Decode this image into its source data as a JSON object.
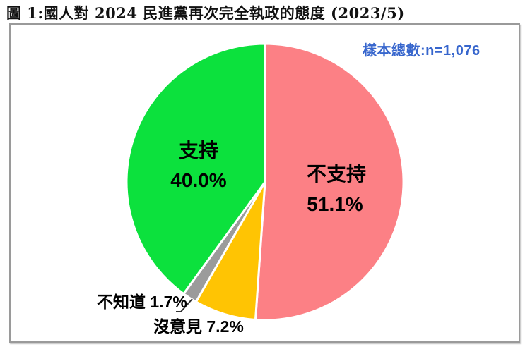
{
  "figure": {
    "title": "圖 1:國人對 2024 民進黨再次完全執政的態度 (2023/5)",
    "sample_note": "樣本總數:n=1,076",
    "sample_note_color": "#3766CD"
  },
  "chart_data": {
    "type": "pie",
    "title": "國人對 2024 民進黨再次完全執政的態度 (2023/5)",
    "sample_size": "n=1,076",
    "direction": "clockwise",
    "start_angle": "top (12 o'clock)",
    "legend": "none",
    "slices": [
      {
        "label": "不支持",
        "value": 51.1,
        "pct_label": "51.1%",
        "color": "#FC8085",
        "label_placement": "inside"
      },
      {
        "label": "沒意見",
        "value": 7.2,
        "pct_label": "7.2%",
        "color": "#FFC403",
        "label_placement": "outside"
      },
      {
        "label": "不知道",
        "value": 1.7,
        "pct_label": "1.7%",
        "color": "#9B9B9B",
        "label_placement": "outside-with-leader-line"
      },
      {
        "label": "支持",
        "value": 40.0,
        "pct_label": "40.0%",
        "color": "#0CE13D",
        "label_placement": "inside"
      }
    ]
  }
}
